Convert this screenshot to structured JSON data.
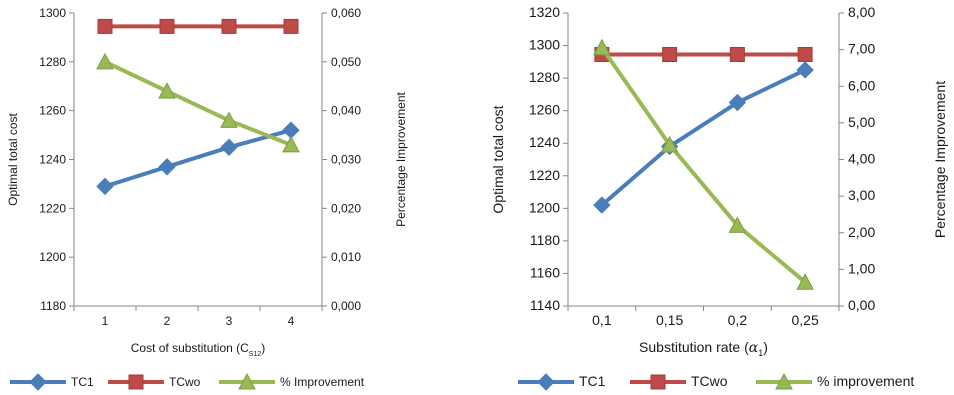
{
  "chart_data": [
    {
      "type": "line",
      "xlabel": "Cost of substitution (C",
      "xlabel_sub": "S12",
      "xlabel_end": ")",
      "ylabel": "Optimal total cost",
      "y2label": "Percentage Improvement",
      "categories": [
        "1",
        "2",
        "3",
        "4"
      ],
      "ylim": [
        1180,
        1300
      ],
      "yticks": [
        "1180",
        "1200",
        "1220",
        "1240",
        "1260",
        "1280",
        "1300"
      ],
      "y2lim": [
        0,
        0.06
      ],
      "y2ticks": [
        "0,000",
        "0,010",
        "0,020",
        "0,030",
        "0,040",
        "0,050",
        "0,060"
      ],
      "grid": false,
      "legend_position": "bottom",
      "series": [
        {
          "name": "TC1",
          "axis": "left",
          "color": "#4a7ebb",
          "marker": "diamond",
          "values": [
            1229,
            1237,
            1245,
            1252
          ]
        },
        {
          "name": "TCwo",
          "axis": "left",
          "color": "#be4b48",
          "marker": "square",
          "values": [
            1294.5,
            1294.5,
            1294.5,
            1294.5
          ]
        },
        {
          "name": "% Improvement",
          "axis": "right",
          "color": "#98b954",
          "marker": "triangle",
          "values": [
            0.05,
            0.044,
            0.038,
            0.033
          ]
        }
      ]
    },
    {
      "type": "line",
      "xlabel": "Substitution rate (",
      "xlabel_sym": "α",
      "xlabel_sub": "1",
      "xlabel_end": ")",
      "ylabel": "Optimal total cost",
      "y2label": "Percentage Improvement",
      "categories": [
        "0,1",
        "0,15",
        "0,2",
        "0,25"
      ],
      "ylim": [
        1140,
        1320
      ],
      "yticks": [
        "1140",
        "1160",
        "1180",
        "1200",
        "1220",
        "1240",
        "1260",
        "1280",
        "1300",
        "1320"
      ],
      "y2lim": [
        0,
        8
      ],
      "y2ticks": [
        "0,00",
        "1,00",
        "2,00",
        "3,00",
        "4,00",
        "5,00",
        "6,00",
        "7,00",
        "8,00"
      ],
      "grid": false,
      "legend_position": "bottom",
      "series": [
        {
          "name": "TC1",
          "axis": "left",
          "color": "#4a7ebb",
          "marker": "diamond",
          "values": [
            1202,
            1238,
            1265,
            1285
          ]
        },
        {
          "name": "TCwo",
          "axis": "left",
          "color": "#be4b48",
          "marker": "square",
          "values": [
            1294.5,
            1294.5,
            1294.5,
            1294.5
          ]
        },
        {
          "name": "% improvement",
          "axis": "right",
          "color": "#98b954",
          "marker": "triangle",
          "values": [
            7.05,
            4.4,
            2.2,
            0.65
          ]
        }
      ]
    }
  ]
}
